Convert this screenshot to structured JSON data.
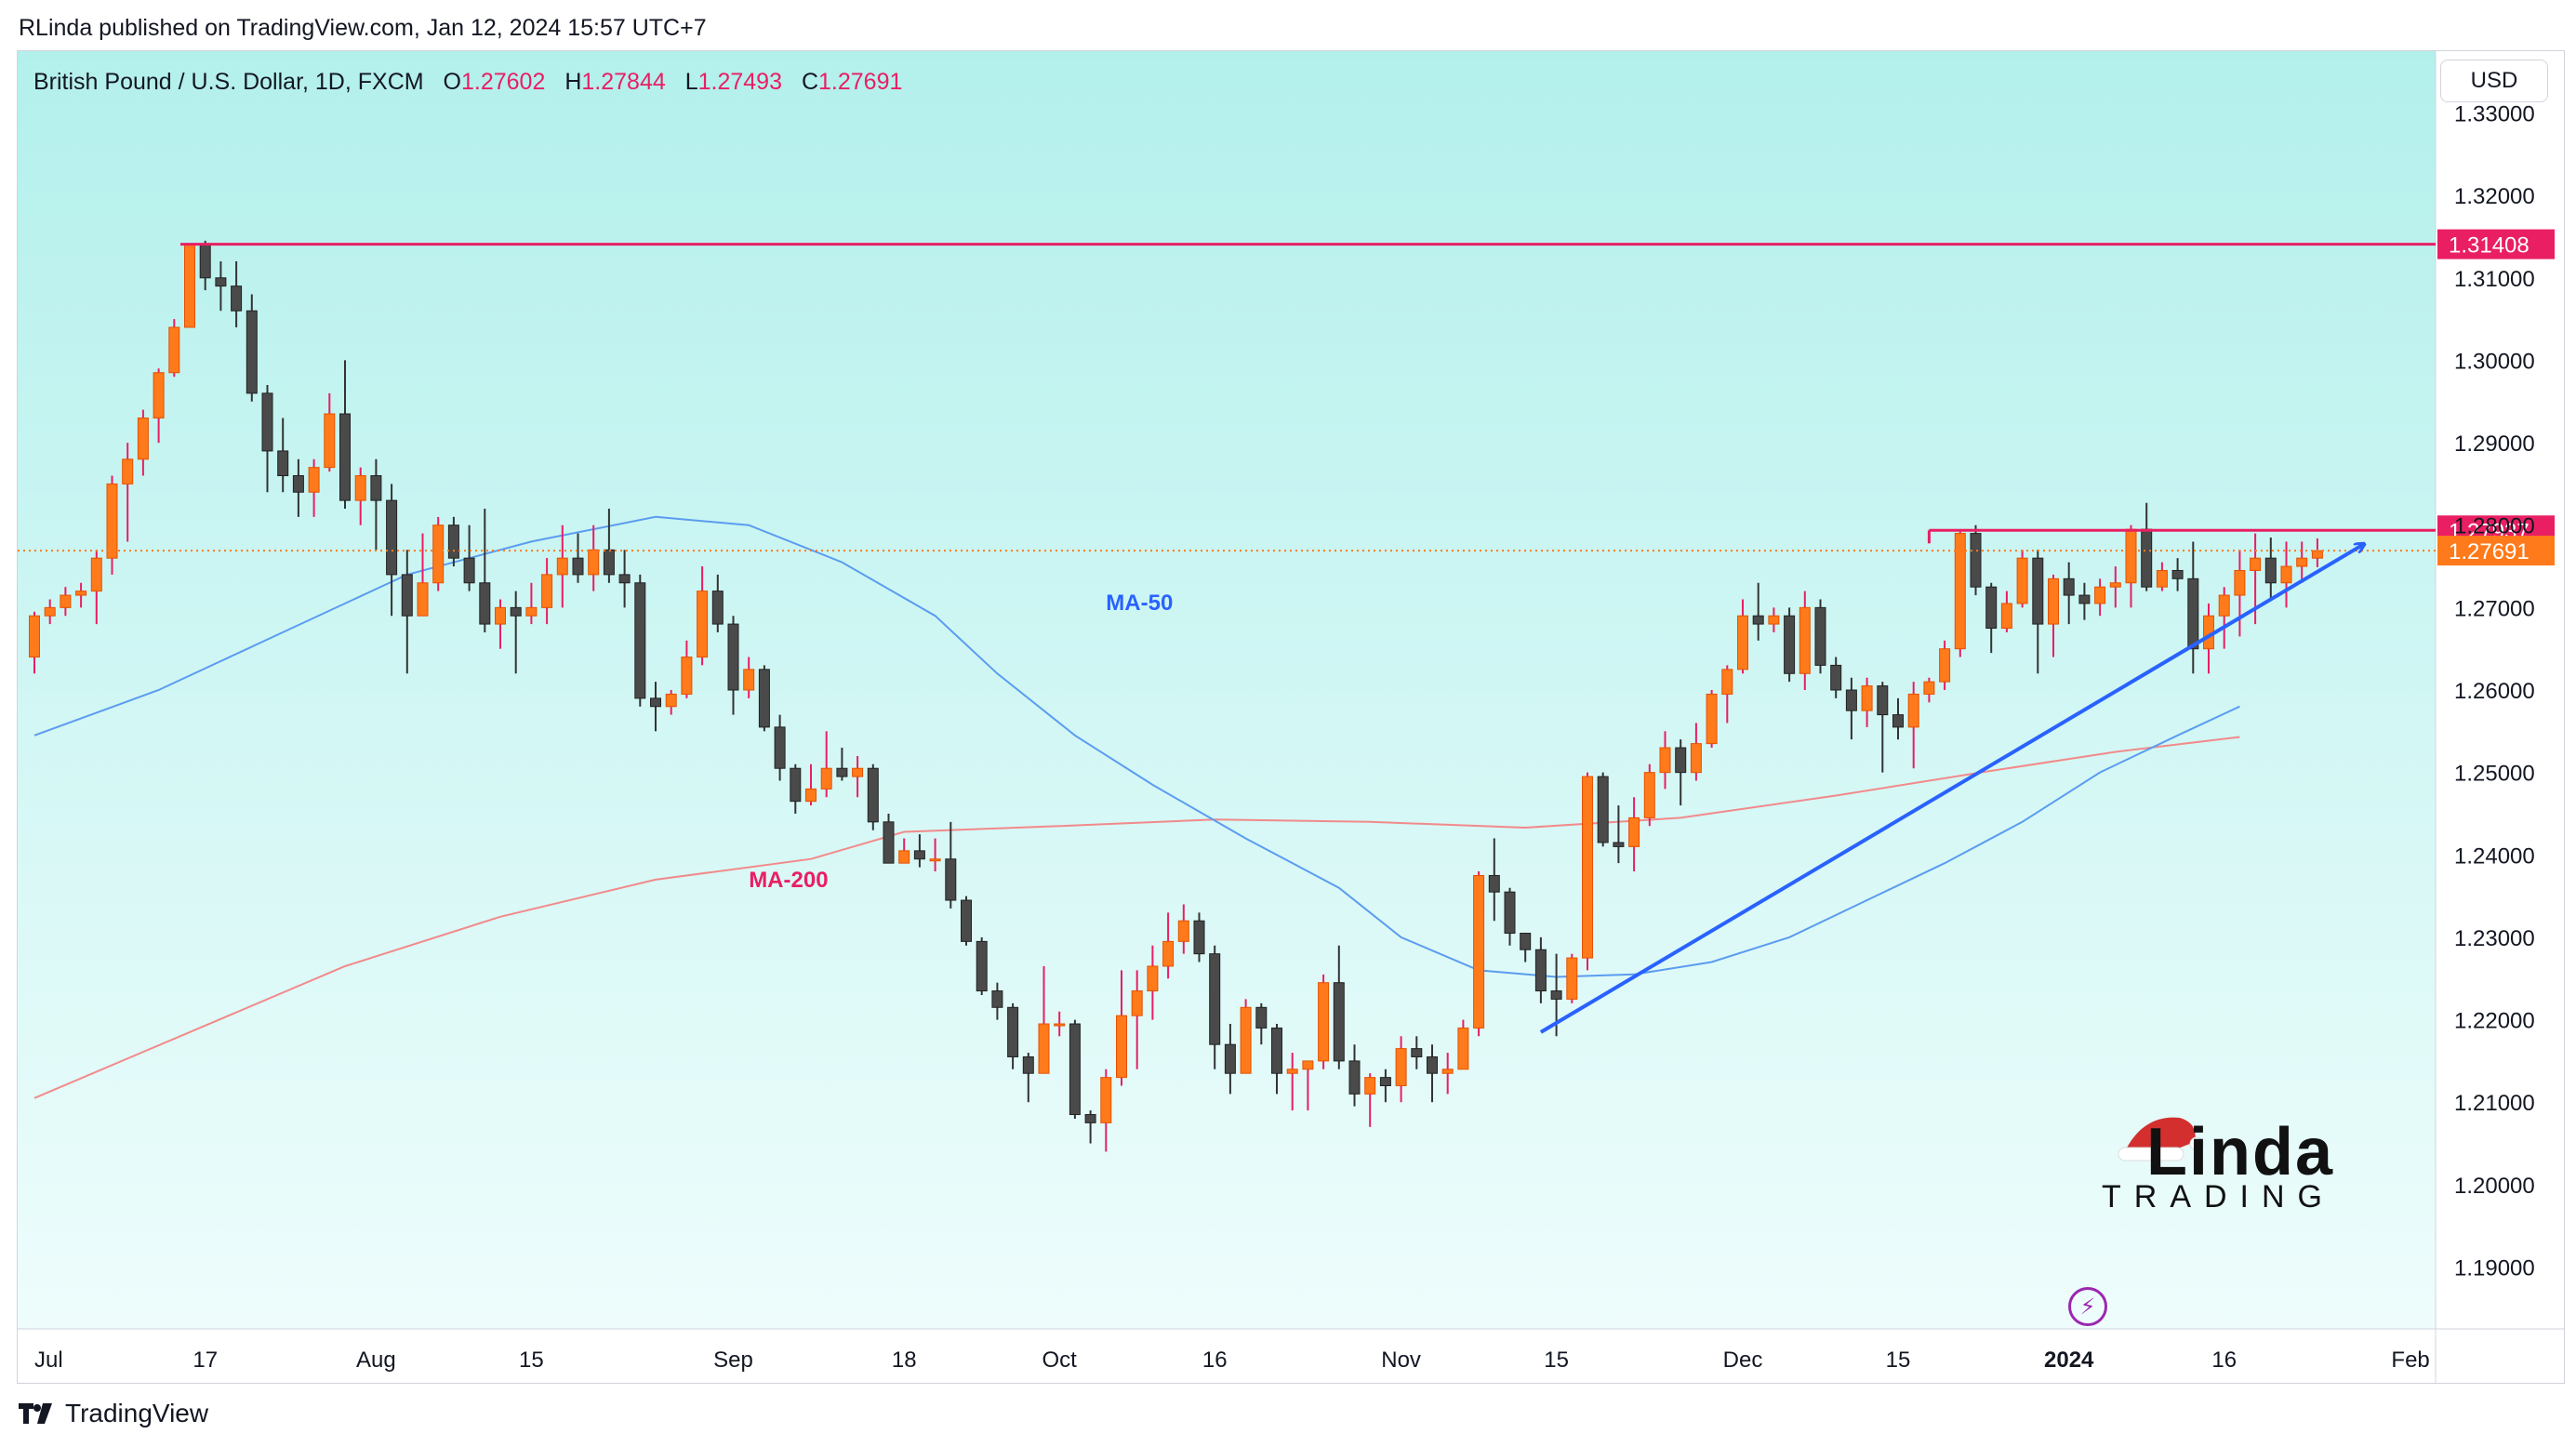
{
  "header": {
    "published_text": "RLinda published on TradingView.com, Jan 12, 2024 15:57 UTC+7"
  },
  "legend": {
    "symbol_text": "British Pound / U.S. Dollar, 1D, FXCM",
    "o_label": "O",
    "o_value": "1.27602",
    "h_label": "H",
    "h_value": "1.27844",
    "l_label": "L",
    "l_value": "1.27493",
    "c_label": "C",
    "c_value": "1.27691"
  },
  "toolbar": {
    "currency_label": "USD"
  },
  "footer": {
    "brand_label": "TradingView"
  },
  "watermark": {
    "line1": "Linda",
    "line2": "TRADING"
  },
  "colors": {
    "bull": "#ff7a1a",
    "bear": "#4a4a4a",
    "wick_bull": "#e91e63",
    "wick_bear": "#333333",
    "bg_top": "#b3f0ec",
    "bg_bottom": "#eefdfc",
    "resistance": "#e91e63",
    "trendline": "#2962ff",
    "ma50": "#5b9cf0",
    "ma200": "#f28a8a",
    "last_price": "#ff7a1a"
  },
  "chart_data": {
    "type": "candlestick",
    "price_range": [
      1.1825,
      1.3375
    ],
    "y_ticks": [
      "1.33000",
      "1.32000",
      "1.31000",
      "1.30000",
      "1.29000",
      "1.28000",
      "1.27000",
      "1.26000",
      "1.25000",
      "1.24000",
      "1.23000",
      "1.22000",
      "1.21000",
      "1.20000",
      "1.19000"
    ],
    "x_ticks": [
      {
        "label": "Jul",
        "i": 0,
        "bold": false
      },
      {
        "label": "17",
        "i": 11,
        "bold": false
      },
      {
        "label": "Aug",
        "i": 22,
        "bold": false
      },
      {
        "label": "15",
        "i": 32,
        "bold": false
      },
      {
        "label": "Sep",
        "i": 45,
        "bold": false
      },
      {
        "label": "18",
        "i": 56,
        "bold": false
      },
      {
        "label": "Oct",
        "i": 66,
        "bold": false
      },
      {
        "label": "16",
        "i": 76,
        "bold": false
      },
      {
        "label": "Nov",
        "i": 88,
        "bold": false
      },
      {
        "label": "15",
        "i": 98,
        "bold": false
      },
      {
        "label": "Dec",
        "i": 110,
        "bold": false
      },
      {
        "label": "15",
        "i": 120,
        "bold": false
      },
      {
        "label": "2024",
        "i": 131,
        "bold": true
      },
      {
        "label": "16",
        "i": 141,
        "bold": false
      },
      {
        "label": "Feb",
        "i": 153,
        "bold": false
      }
    ],
    "candles": [
      [
        1.264,
        1.269,
        1.262,
        1.2695
      ],
      [
        1.269,
        1.27,
        1.268,
        1.271
      ],
      [
        1.27,
        1.2715,
        1.269,
        1.2725
      ],
      [
        1.2715,
        1.272,
        1.27,
        1.273
      ],
      [
        1.272,
        1.276,
        1.268,
        1.277
      ],
      [
        1.276,
        1.285,
        1.274,
        1.286
      ],
      [
        1.285,
        1.288,
        1.278,
        1.29
      ],
      [
        1.288,
        1.293,
        1.286,
        1.294
      ],
      [
        1.293,
        1.2985,
        1.29,
        1.299
      ],
      [
        1.2985,
        1.304,
        1.298,
        1.305
      ],
      [
        1.304,
        1.314,
        1.304,
        1.314
      ],
      [
        1.314,
        1.31,
        1.3085,
        1.3145
      ],
      [
        1.31,
        1.309,
        1.306,
        1.312
      ],
      [
        1.309,
        1.306,
        1.304,
        1.312
      ],
      [
        1.306,
        1.296,
        1.295,
        1.308
      ],
      [
        1.296,
        1.289,
        1.284,
        1.297
      ],
      [
        1.289,
        1.286,
        1.284,
        1.293
      ],
      [
        1.286,
        1.284,
        1.281,
        1.288
      ],
      [
        1.284,
        1.287,
        1.281,
        1.288
      ],
      [
        1.287,
        1.2935,
        1.2865,
        1.296
      ],
      [
        1.2935,
        1.283,
        1.282,
        1.3
      ],
      [
        1.283,
        1.286,
        1.28,
        1.287
      ],
      [
        1.286,
        1.283,
        1.277,
        1.288
      ],
      [
        1.283,
        1.274,
        1.269,
        1.285
      ],
      [
        1.274,
        1.269,
        1.262,
        1.277
      ],
      [
        1.269,
        1.273,
        1.269,
        1.279
      ],
      [
        1.273,
        1.28,
        1.272,
        1.281
      ],
      [
        1.28,
        1.276,
        1.275,
        1.281
      ],
      [
        1.276,
        1.273,
        1.272,
        1.28
      ],
      [
        1.273,
        1.268,
        1.267,
        1.282
      ],
      [
        1.268,
        1.27,
        1.265,
        1.271
      ],
      [
        1.27,
        1.269,
        1.262,
        1.272
      ],
      [
        1.269,
        1.27,
        1.268,
        1.273
      ],
      [
        1.27,
        1.274,
        1.268,
        1.276
      ],
      [
        1.274,
        1.276,
        1.27,
        1.28
      ],
      [
        1.276,
        1.274,
        1.273,
        1.279
      ],
      [
        1.274,
        1.277,
        1.272,
        1.28
      ],
      [
        1.277,
        1.274,
        1.273,
        1.282
      ],
      [
        1.274,
        1.273,
        1.27,
        1.277
      ],
      [
        1.273,
        1.259,
        1.258,
        1.274
      ],
      [
        1.259,
        1.258,
        1.255,
        1.261
      ],
      [
        1.258,
        1.2595,
        1.257,
        1.26
      ],
      [
        1.2595,
        1.264,
        1.259,
        1.266
      ],
      [
        1.264,
        1.272,
        1.263,
        1.275
      ],
      [
        1.272,
        1.268,
        1.267,
        1.274
      ],
      [
        1.268,
        1.26,
        1.257,
        1.269
      ],
      [
        1.26,
        1.2625,
        1.259,
        1.264
      ],
      [
        1.2625,
        1.2555,
        1.255,
        1.263
      ],
      [
        1.2555,
        1.2505,
        1.249,
        1.257
      ],
      [
        1.2505,
        1.2465,
        1.245,
        1.251
      ],
      [
        1.2465,
        1.248,
        1.246,
        1.251
      ],
      [
        1.248,
        1.2505,
        1.247,
        1.255
      ],
      [
        1.2505,
        1.2495,
        1.249,
        1.253
      ],
      [
        1.2495,
        1.2505,
        1.247,
        1.252
      ],
      [
        1.2505,
        1.244,
        1.243,
        1.251
      ],
      [
        1.244,
        1.239,
        1.239,
        1.245
      ],
      [
        1.239,
        1.2405,
        1.239,
        1.242
      ],
      [
        1.2405,
        1.2395,
        1.2385,
        1.2425
      ],
      [
        1.2395,
        1.2395,
        1.238,
        1.242
      ],
      [
        1.2395,
        1.2345,
        1.2335,
        1.244
      ],
      [
        1.2345,
        1.2295,
        1.229,
        1.235
      ],
      [
        1.2295,
        1.2235,
        1.223,
        1.23
      ],
      [
        1.2235,
        1.2215,
        1.22,
        1.2245
      ],
      [
        1.2215,
        1.2155,
        1.214,
        1.222
      ],
      [
        1.2155,
        1.2135,
        1.21,
        1.216
      ],
      [
        1.2135,
        1.2195,
        1.2135,
        1.2265
      ],
      [
        1.2195,
        1.2195,
        1.218,
        1.221
      ],
      [
        1.2195,
        1.2085,
        1.208,
        1.22
      ],
      [
        1.2085,
        1.2075,
        1.205,
        1.209
      ],
      [
        1.2075,
        1.213,
        1.204,
        1.214
      ],
      [
        1.213,
        1.2205,
        1.212,
        1.226
      ],
      [
        1.2205,
        1.2235,
        1.214,
        1.226
      ],
      [
        1.2235,
        1.2265,
        1.22,
        1.229
      ],
      [
        1.2265,
        1.2295,
        1.225,
        1.233
      ],
      [
        1.2295,
        1.232,
        1.228,
        1.234
      ],
      [
        1.232,
        1.228,
        1.227,
        1.233
      ],
      [
        1.228,
        1.217,
        1.214,
        1.229
      ],
      [
        1.217,
        1.2135,
        1.211,
        1.2195
      ],
      [
        1.2135,
        1.2215,
        1.2135,
        1.2225
      ],
      [
        1.2215,
        1.219,
        1.217,
        1.222
      ],
      [
        1.219,
        1.2135,
        1.211,
        1.2195
      ],
      [
        1.2135,
        1.214,
        1.209,
        1.216
      ],
      [
        1.214,
        1.215,
        1.209,
        1.215
      ],
      [
        1.215,
        1.2245,
        1.214,
        1.2255
      ],
      [
        1.2245,
        1.215,
        1.214,
        1.229
      ],
      [
        1.215,
        1.211,
        1.2095,
        1.217
      ],
      [
        1.211,
        1.213,
        1.207,
        1.2135
      ],
      [
        1.213,
        1.212,
        1.21,
        1.214
      ],
      [
        1.212,
        1.2165,
        1.21,
        1.218
      ],
      [
        1.2165,
        1.2155,
        1.214,
        1.218
      ],
      [
        1.2155,
        1.2135,
        1.21,
        1.217
      ],
      [
        1.2135,
        1.214,
        1.211,
        1.216
      ],
      [
        1.214,
        1.219,
        1.214,
        1.22
      ],
      [
        1.219,
        1.2375,
        1.218,
        1.238
      ],
      [
        1.2375,
        1.2355,
        1.232,
        1.242
      ],
      [
        1.2355,
        1.2305,
        1.229,
        1.236
      ],
      [
        1.2305,
        1.2285,
        1.227,
        1.23
      ],
      [
        1.2285,
        1.2235,
        1.222,
        1.23
      ],
      [
        1.2235,
        1.2225,
        1.218,
        1.228
      ],
      [
        1.2225,
        1.2275,
        1.222,
        1.228
      ],
      [
        1.2275,
        1.2495,
        1.226,
        1.25
      ],
      [
        1.2495,
        1.2415,
        1.241,
        1.25
      ],
      [
        1.2415,
        1.241,
        1.239,
        1.246
      ],
      [
        1.241,
        1.2445,
        1.238,
        1.247
      ],
      [
        1.2445,
        1.25,
        1.2435,
        1.251
      ],
      [
        1.25,
        1.253,
        1.248,
        1.255
      ],
      [
        1.253,
        1.25,
        1.246,
        1.254
      ],
      [
        1.25,
        1.2535,
        1.249,
        1.256
      ],
      [
        1.2535,
        1.2595,
        1.253,
        1.26
      ],
      [
        1.2595,
        1.2625,
        1.256,
        1.263
      ],
      [
        1.2625,
        1.269,
        1.262,
        1.271
      ],
      [
        1.269,
        1.268,
        1.266,
        1.273
      ],
      [
        1.268,
        1.269,
        1.267,
        1.27
      ],
      [
        1.269,
        1.262,
        1.261,
        1.27
      ],
      [
        1.262,
        1.27,
        1.26,
        1.272
      ],
      [
        1.27,
        1.263,
        1.262,
        1.271
      ],
      [
        1.263,
        1.26,
        1.259,
        1.264
      ],
      [
        1.26,
        1.2575,
        1.254,
        1.2615
      ],
      [
        1.2575,
        1.2605,
        1.2555,
        1.2615
      ],
      [
        1.2605,
        1.257,
        1.25,
        1.261
      ],
      [
        1.257,
        1.2555,
        1.254,
        1.259
      ],
      [
        1.2555,
        1.2595,
        1.2505,
        1.261
      ],
      [
        1.2595,
        1.261,
        1.2585,
        1.2615
      ],
      [
        1.261,
        1.265,
        1.26,
        1.266
      ],
      [
        1.265,
        1.279,
        1.264,
        1.2795
      ],
      [
        1.279,
        1.2725,
        1.2715,
        1.28
      ],
      [
        1.2725,
        1.2675,
        1.2645,
        1.273
      ],
      [
        1.2675,
        1.2705,
        1.267,
        1.272
      ],
      [
        1.2705,
        1.276,
        1.27,
        1.277
      ],
      [
        1.276,
        1.268,
        1.262,
        1.277
      ],
      [
        1.268,
        1.2735,
        1.264,
        1.274
      ],
      [
        1.2735,
        1.2715,
        1.268,
        1.2755
      ],
      [
        1.2715,
        1.2705,
        1.2685,
        1.273
      ],
      [
        1.2705,
        1.2725,
        1.269,
        1.2735
      ],
      [
        1.2725,
        1.273,
        1.27,
        1.275
      ],
      [
        1.273,
        1.2795,
        1.27,
        1.28
      ],
      [
        1.2795,
        1.2725,
        1.272,
        1.2827
      ],
      [
        1.2725,
        1.2745,
        1.272,
        1.2755
      ],
      [
        1.2745,
        1.2735,
        1.272,
        1.276
      ],
      [
        1.2735,
        1.265,
        1.262,
        1.278
      ],
      [
        1.265,
        1.269,
        1.262,
        1.2705
      ],
      [
        1.269,
        1.2715,
        1.265,
        1.2725
      ],
      [
        1.2715,
        1.2745,
        1.2665,
        1.277
      ],
      [
        1.2745,
        1.276,
        1.268,
        1.279
      ],
      [
        1.276,
        1.273,
        1.271,
        1.2785
      ],
      [
        1.273,
        1.275,
        1.27,
        1.278
      ],
      [
        1.275,
        1.276,
        1.273,
        1.278
      ],
      [
        1.276,
        1.2769,
        1.2749,
        1.2784
      ]
    ],
    "ma50": [
      [
        0,
        1.2545
      ],
      [
        8,
        1.26
      ],
      [
        16,
        1.267
      ],
      [
        24,
        1.274
      ],
      [
        32,
        1.278
      ],
      [
        40,
        1.281
      ],
      [
        46,
        1.28
      ],
      [
        52,
        1.2755
      ],
      [
        58,
        1.269
      ],
      [
        62,
        1.262
      ],
      [
        67,
        1.2545
      ],
      [
        72,
        1.2485
      ],
      [
        78,
        1.242
      ],
      [
        84,
        1.236
      ],
      [
        88,
        1.23
      ],
      [
        93,
        1.226
      ],
      [
        98,
        1.2252
      ],
      [
        103,
        1.2255
      ],
      [
        108,
        1.227
      ],
      [
        113,
        1.23
      ],
      [
        118,
        1.2345
      ],
      [
        123,
        1.239
      ],
      [
        128,
        1.244
      ],
      [
        133,
        1.25
      ],
      [
        138,
        1.2545
      ],
      [
        142,
        1.258
      ]
    ],
    "ma200": [
      [
        0,
        1.2105
      ],
      [
        10,
        1.2185
      ],
      [
        20,
        1.2265
      ],
      [
        30,
        1.2325
      ],
      [
        40,
        1.237
      ],
      [
        50,
        1.2395
      ],
      [
        56,
        1.2428
      ],
      [
        66,
        1.2435
      ],
      [
        76,
        1.2443
      ],
      [
        86,
        1.244
      ],
      [
        96,
        1.2433
      ],
      [
        106,
        1.2445
      ],
      [
        116,
        1.2472
      ],
      [
        126,
        1.2502
      ],
      [
        134,
        1.2525
      ],
      [
        142,
        1.2543
      ]
    ],
    "resistance_lines": [
      {
        "label": "1.31408",
        "price": 1.31408,
        "from_i": 10
      },
      {
        "label": "1.27937",
        "price": 1.27937,
        "from_i": 122
      }
    ],
    "last_price": {
      "label": "1.27691",
      "price": 1.27691
    },
    "trendline": {
      "from": [
        97,
        1.2185
      ],
      "to": [
        150,
        1.2777
      ]
    },
    "annotations": [
      {
        "label": "MA-50",
        "i": 69,
        "price": 1.2697,
        "color": "#2962ff"
      },
      {
        "label": "MA-200",
        "i": 46,
        "price": 1.2361,
        "color": "#e91e63"
      }
    ]
  }
}
